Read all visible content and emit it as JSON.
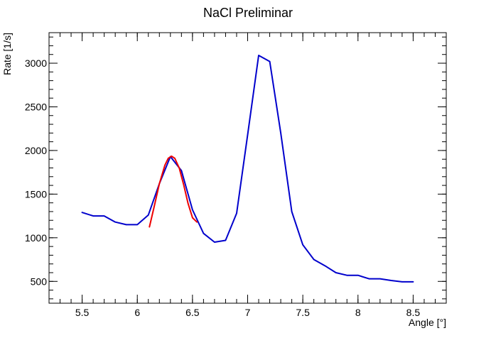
{
  "chart_data": {
    "type": "line",
    "title": "NaCl Preliminar",
    "xlabel": "Angle [°]",
    "ylabel": "Rate [1/s]",
    "xlim": [
      5.2,
      8.8
    ],
    "ylim": [
      250,
      3350
    ],
    "x_ticks": [
      {
        "value": 5.5,
        "label": "5.5"
      },
      {
        "value": 6.0,
        "label": "6"
      },
      {
        "value": 6.5,
        "label": "6.5"
      },
      {
        "value": 7.0,
        "label": "7"
      },
      {
        "value": 7.5,
        "label": "7.5"
      },
      {
        "value": 8.0,
        "label": "8"
      },
      {
        "value": 8.5,
        "label": "8.5"
      }
    ],
    "y_ticks": [
      {
        "value": 500,
        "label": "500"
      },
      {
        "value": 1000,
        "label": "1000"
      },
      {
        "value": 1500,
        "label": "1500"
      },
      {
        "value": 2000,
        "label": "2000"
      },
      {
        "value": 2500,
        "label": "2500"
      },
      {
        "value": 3000,
        "label": "3000"
      }
    ],
    "grid": false,
    "series": [
      {
        "color": "#0000cc",
        "x": [
          5.5,
          5.6,
          5.7,
          5.8,
          5.9,
          6.0,
          6.1,
          6.2,
          6.3,
          6.4,
          6.5,
          6.6,
          6.7,
          6.8,
          6.9,
          7.0,
          7.1,
          7.2,
          7.3,
          7.4,
          7.5,
          7.6,
          7.7,
          7.8,
          7.9,
          8.0,
          8.1,
          8.2,
          8.3,
          8.4,
          8.5
        ],
        "y": [
          1290,
          1250,
          1250,
          1180,
          1150,
          1150,
          1260,
          1620,
          1930,
          1770,
          1320,
          1050,
          950,
          970,
          1280,
          2180,
          3090,
          3020,
          2200,
          1300,
          920,
          750,
          680,
          600,
          570,
          570,
          530,
          530,
          510,
          495,
          495
        ]
      },
      {
        "color": "#ee0000",
        "x": [
          6.11,
          6.15,
          6.2,
          6.25,
          6.28,
          6.31,
          6.34,
          6.38,
          6.42,
          6.46,
          6.5,
          6.54
        ],
        "y": [
          1125,
          1340,
          1620,
          1830,
          1910,
          1935,
          1910,
          1800,
          1610,
          1395,
          1230,
          1180
        ]
      }
    ]
  }
}
